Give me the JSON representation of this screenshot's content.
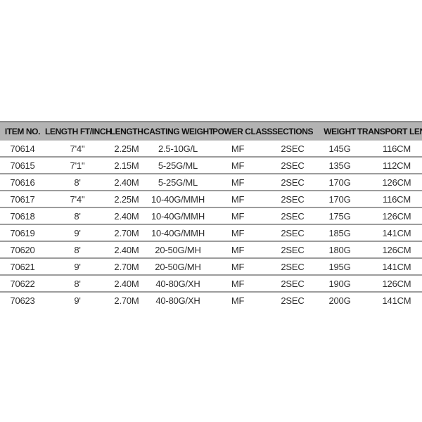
{
  "chart_data": {
    "type": "table",
    "columns": [
      "ITEM NO.",
      "LENGTH FT/INCH",
      "LENGTH",
      "CASTING WEIGHT",
      "POWER CLASS",
      "SECTIONS",
      "WEIGHT",
      "TRANSPORT LENGTH"
    ],
    "column_keys": [
      "item-no",
      "length-ft-inch",
      "length",
      "casting-weight",
      "power-class",
      "sections",
      "weight",
      "transport-length"
    ],
    "rows": [
      [
        "70614",
        "7'4''",
        "2.25M",
        "2.5-10G/L",
        "MF",
        "2SEC",
        "145G",
        "116CM"
      ],
      [
        "70615",
        "7'1''",
        "2.15M",
        "5-25G/ML",
        "MF",
        "2SEC",
        "135G",
        "112CM"
      ],
      [
        "70616",
        "8'",
        "2.40M",
        "5-25G/ML",
        "MF",
        "2SEC",
        "170G",
        "126CM"
      ],
      [
        "70617",
        "7'4''",
        "2.25M",
        "10-40G/MMH",
        "MF",
        "2SEC",
        "170G",
        "116CM"
      ],
      [
        "70618",
        "8'",
        "2.40M",
        "10-40G/MMH",
        "MF",
        "2SEC",
        "175G",
        "126CM"
      ],
      [
        "70619",
        "9'",
        "2.70M",
        "10-40G/MMH",
        "MF",
        "2SEC",
        "185G",
        "141CM"
      ],
      [
        "70620",
        "8'",
        "2.40M",
        "20-50G/MH",
        "MF",
        "2SEC",
        "180G",
        "126CM"
      ],
      [
        "70621",
        "9'",
        "2.70M",
        "20-50G/MH",
        "MF",
        "2SEC",
        "195G",
        "141CM"
      ],
      [
        "70622",
        "8'",
        "2.40M",
        "40-80G/XH",
        "MF",
        "2SEC",
        "190G",
        "126CM"
      ],
      [
        "70623",
        "9'",
        "2.70M",
        "40-80G/XH",
        "MF",
        "2SEC",
        "200G",
        "141CM"
      ]
    ]
  },
  "colors": {
    "header_bg": "#b3b3b3",
    "header_text": "#111111",
    "cell_text": "#2e2e2e",
    "row_separator": "#9c9c9c",
    "top_border": "#8d8d8d"
  }
}
